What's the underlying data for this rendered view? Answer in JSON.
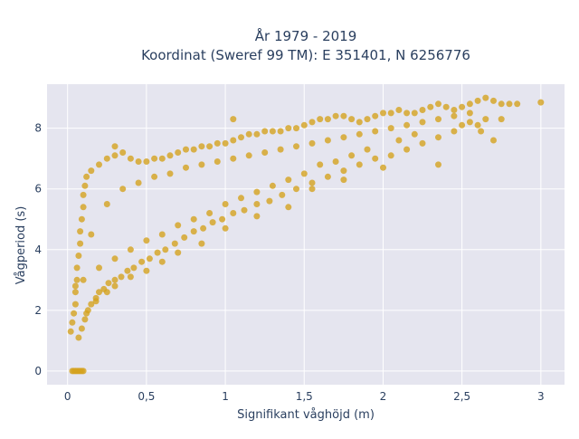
{
  "chart_data": {
    "type": "scatter",
    "title_line1": "År 1979 - 2019",
    "title_line2": "Koordinat (Sweref 99 TM): E 351401, N 6256776",
    "xlabel": "Signifikant våghöjd (m)",
    "ylabel": "Vågperiod (s)",
    "xlim": [
      -0.13,
      3.15
    ],
    "ylim": [
      -0.45,
      9.45
    ],
    "x_ticks": [
      {
        "value": 0,
        "label": "0"
      },
      {
        "value": 0.5,
        "label": "0,5"
      },
      {
        "value": 1,
        "label": "1"
      },
      {
        "value": 1.5,
        "label": "1,5"
      },
      {
        "value": 2,
        "label": "2"
      },
      {
        "value": 2.5,
        "label": "2,5"
      },
      {
        "value": 3,
        "label": "3"
      }
    ],
    "y_ticks": [
      {
        "value": 0,
        "label": "0"
      },
      {
        "value": 2,
        "label": "2"
      },
      {
        "value": 4,
        "label": "4"
      },
      {
        "value": 6,
        "label": "6"
      },
      {
        "value": 8,
        "label": "8"
      }
    ],
    "grid": true,
    "marker_color": "#d4a21f",
    "plot_background": "#e5e5ef",
    "series": [
      {
        "points": [
          [
            0.02,
            1.3
          ],
          [
            0.03,
            1.6
          ],
          [
            0.04,
            1.9
          ],
          [
            0.05,
            2.2
          ],
          [
            0.05,
            2.6
          ],
          [
            0.06,
            3.0
          ],
          [
            0.06,
            3.4
          ],
          [
            0.07,
            3.8
          ],
          [
            0.08,
            4.2
          ],
          [
            0.08,
            4.6
          ],
          [
            0.09,
            5.0
          ],
          [
            0.1,
            5.4
          ],
          [
            0.1,
            5.8
          ],
          [
            0.11,
            6.1
          ],
          [
            0.12,
            6.4
          ],
          [
            0.07,
            1.1
          ],
          [
            0.09,
            1.4
          ],
          [
            0.11,
            1.7
          ],
          [
            0.13,
            2.0
          ],
          [
            0.15,
            2.2
          ],
          [
            0.18,
            2.4
          ],
          [
            0.2,
            2.6
          ],
          [
            0.23,
            2.7
          ],
          [
            0.26,
            2.9
          ],
          [
            0.3,
            3.0
          ],
          [
            0.34,
            3.1
          ],
          [
            0.38,
            3.3
          ],
          [
            0.42,
            3.4
          ],
          [
            0.47,
            3.6
          ],
          [
            0.52,
            3.7
          ],
          [
            0.57,
            3.9
          ],
          [
            0.62,
            4.0
          ],
          [
            0.68,
            4.2
          ],
          [
            0.74,
            4.4
          ],
          [
            0.8,
            4.6
          ],
          [
            0.86,
            4.7
          ],
          [
            0.92,
            4.9
          ],
          [
            0.98,
            5.0
          ],
          [
            1.05,
            5.2
          ],
          [
            1.12,
            5.3
          ],
          [
            1.2,
            5.5
          ],
          [
            1.28,
            5.6
          ],
          [
            1.36,
            5.8
          ],
          [
            1.45,
            6.0
          ],
          [
            1.55,
            6.2
          ],
          [
            1.65,
            6.4
          ],
          [
            1.75,
            6.6
          ],
          [
            1.85,
            6.8
          ],
          [
            1.95,
            7.0
          ],
          [
            2.05,
            7.1
          ],
          [
            2.15,
            7.3
          ],
          [
            2.25,
            7.5
          ],
          [
            2.35,
            7.7
          ],
          [
            2.45,
            7.9
          ],
          [
            0.15,
            6.6
          ],
          [
            0.2,
            6.8
          ],
          [
            0.25,
            7.0
          ],
          [
            0.3,
            7.1
          ],
          [
            0.35,
            7.2
          ],
          [
            0.4,
            7.0
          ],
          [
            0.45,
            6.9
          ],
          [
            0.5,
            6.9
          ],
          [
            0.55,
            7.0
          ],
          [
            0.6,
            7.0
          ],
          [
            0.65,
            7.1
          ],
          [
            0.7,
            7.2
          ],
          [
            0.75,
            7.3
          ],
          [
            0.8,
            7.3
          ],
          [
            0.85,
            7.4
          ],
          [
            0.9,
            7.4
          ],
          [
            0.95,
            7.5
          ],
          [
            1.0,
            7.5
          ],
          [
            1.05,
            7.6
          ],
          [
            1.1,
            7.7
          ],
          [
            1.15,
            7.8
          ],
          [
            1.2,
            7.8
          ],
          [
            1.25,
            7.9
          ],
          [
            1.3,
            7.9
          ],
          [
            1.35,
            7.9
          ],
          [
            1.4,
            8.0
          ],
          [
            1.45,
            8.0
          ],
          [
            1.5,
            8.1
          ],
          [
            1.55,
            8.2
          ],
          [
            1.6,
            8.3
          ],
          [
            1.65,
            8.3
          ],
          [
            1.7,
            8.4
          ],
          [
            1.75,
            8.4
          ],
          [
            1.8,
            8.3
          ],
          [
            1.85,
            8.2
          ],
          [
            1.9,
            8.3
          ],
          [
            1.95,
            8.4
          ],
          [
            2.0,
            8.5
          ],
          [
            2.05,
            8.5
          ],
          [
            2.1,
            8.6
          ],
          [
            2.15,
            8.5
          ],
          [
            2.2,
            8.5
          ],
          [
            2.25,
            8.6
          ],
          [
            2.3,
            8.7
          ],
          [
            2.35,
            8.8
          ],
          [
            2.4,
            8.7
          ],
          [
            2.45,
            8.6
          ],
          [
            2.5,
            8.7
          ],
          [
            2.55,
            8.8
          ],
          [
            2.6,
            8.9
          ],
          [
            2.65,
            9.0
          ],
          [
            2.7,
            8.9
          ],
          [
            2.75,
            8.8
          ],
          [
            2.8,
            8.8
          ],
          [
            3.0,
            8.85
          ],
          [
            2.55,
            8.2
          ],
          [
            2.6,
            8.1
          ],
          [
            2.65,
            8.3
          ],
          [
            2.7,
            7.6
          ],
          [
            2.5,
            8.1
          ],
          [
            2.2,
            7.8
          ],
          [
            2.1,
            7.6
          ],
          [
            1.9,
            7.3
          ],
          [
            1.8,
            7.1
          ],
          [
            1.7,
            6.9
          ],
          [
            1.6,
            6.8
          ],
          [
            1.5,
            6.5
          ],
          [
            1.4,
            6.3
          ],
          [
            1.3,
            6.1
          ],
          [
            1.2,
            5.9
          ],
          [
            1.1,
            5.7
          ],
          [
            1.0,
            5.5
          ],
          [
            0.9,
            5.2
          ],
          [
            0.8,
            5.0
          ],
          [
            0.7,
            4.8
          ],
          [
            0.6,
            4.5
          ],
          [
            0.5,
            4.3
          ],
          [
            0.4,
            4.0
          ],
          [
            0.3,
            3.7
          ],
          [
            0.2,
            3.4
          ],
          [
            0.1,
            3.0
          ],
          [
            0.05,
            2.8
          ],
          [
            0.15,
            4.5
          ],
          [
            0.25,
            5.5
          ],
          [
            0.35,
            6.0
          ],
          [
            0.45,
            6.2
          ],
          [
            0.55,
            6.4
          ],
          [
            0.65,
            6.5
          ],
          [
            0.75,
            6.7
          ],
          [
            0.85,
            6.8
          ],
          [
            0.95,
            6.9
          ],
          [
            1.05,
            7.0
          ],
          [
            1.15,
            7.1
          ],
          [
            1.25,
            7.2
          ],
          [
            1.35,
            7.3
          ],
          [
            1.45,
            7.4
          ],
          [
            1.55,
            7.5
          ],
          [
            1.65,
            7.6
          ],
          [
            1.75,
            7.7
          ],
          [
            1.85,
            7.8
          ],
          [
            1.95,
            7.9
          ],
          [
            2.05,
            8.0
          ],
          [
            2.15,
            8.1
          ],
          [
            2.25,
            8.2
          ],
          [
            2.35,
            8.3
          ],
          [
            2.45,
            8.4
          ],
          [
            0.03,
            0
          ],
          [
            0.04,
            0
          ],
          [
            0.05,
            0
          ],
          [
            0.06,
            0
          ],
          [
            0.07,
            0
          ],
          [
            0.08,
            0
          ],
          [
            0.09,
            0
          ],
          [
            0.1,
            0
          ],
          [
            1.05,
            8.3
          ],
          [
            0.3,
            7.4
          ],
          [
            2.55,
            8.5
          ],
          [
            2.75,
            8.3
          ],
          [
            2.85,
            8.8
          ],
          [
            2.62,
            7.9
          ],
          [
            2.35,
            6.8
          ],
          [
            2.0,
            6.7
          ],
          [
            1.75,
            6.3
          ],
          [
            1.55,
            6.0
          ],
          [
            1.4,
            5.4
          ],
          [
            1.2,
            5.1
          ],
          [
            1.0,
            4.7
          ],
          [
            0.85,
            4.2
          ],
          [
            0.7,
            3.9
          ],
          [
            0.6,
            3.6
          ],
          [
            0.5,
            3.3
          ],
          [
            0.4,
            3.1
          ],
          [
            0.3,
            2.8
          ],
          [
            0.25,
            2.6
          ],
          [
            0.18,
            2.3
          ],
          [
            0.12,
            1.9
          ]
        ]
      }
    ]
  }
}
